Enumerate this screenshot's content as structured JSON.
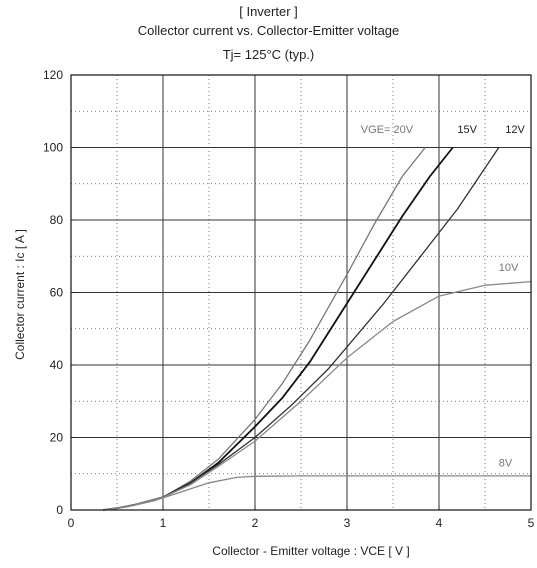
{
  "chart_data": {
    "type": "line",
    "title": "[ Inverter ]",
    "subtitle": "Collector current  vs.  Collector-Emitter voltage",
    "condition": "Tj= 125°C  (typ.)",
    "xlabel": "Collector - Emitter voltage  :  VCE  [ V ]",
    "ylabel": "Collector current  :  Ic [ A ]",
    "xlim": [
      0,
      5
    ],
    "ylim": [
      0,
      120
    ],
    "xticks": [
      "0",
      "1",
      "2",
      "3",
      "4",
      "5"
    ],
    "yticks": [
      "0",
      "20",
      "40",
      "60",
      "80",
      "100",
      "120"
    ],
    "grid": true,
    "series": [
      {
        "name": "VGE= 20V",
        "color": "#777777",
        "x": [
          0.35,
          0.5,
          0.7,
          1.0,
          1.3,
          1.6,
          2.0,
          2.3,
          2.6,
          3.0,
          3.3,
          3.6,
          3.85
        ],
        "y": [
          0,
          0.5,
          1.5,
          3.5,
          8,
          14,
          25,
          35,
          47,
          65,
          79,
          92,
          100
        ]
      },
      {
        "name": "15V",
        "color": "#111111",
        "x": [
          0.35,
          0.5,
          0.7,
          1.0,
          1.3,
          1.6,
          2.0,
          2.3,
          2.6,
          3.0,
          3.3,
          3.6,
          3.9,
          4.15
        ],
        "y": [
          0,
          0.5,
          1.5,
          3.5,
          7.5,
          13,
          23,
          31,
          41,
          57,
          69,
          81,
          92,
          100
        ]
      },
      {
        "name": "12V",
        "color": "#333333",
        "x": [
          0.35,
          0.5,
          0.7,
          1.0,
          1.3,
          1.6,
          2.0,
          2.4,
          2.8,
          3.0,
          3.4,
          3.8,
          4.2,
          4.65
        ],
        "y": [
          0,
          0.5,
          1.5,
          3.5,
          7.5,
          12.5,
          20,
          29,
          39,
          45,
          57,
          70,
          83,
          100
        ]
      },
      {
        "name": "10V",
        "color": "#888888",
        "x": [
          0.35,
          0.5,
          0.7,
          1.0,
          1.3,
          1.6,
          2.0,
          2.5,
          3.0,
          3.5,
          4.0,
          4.5,
          5.0
        ],
        "y": [
          0,
          0.5,
          1.5,
          3.5,
          7,
          12,
          19,
          30,
          42,
          52,
          59,
          62,
          63
        ]
      },
      {
        "name": "8V",
        "color": "#888888",
        "x": [
          0.35,
          0.6,
          0.9,
          1.2,
          1.5,
          1.8,
          2.0,
          2.5,
          3.0,
          4.0,
          5.0
        ],
        "y": [
          0,
          0.8,
          2.5,
          5,
          7.5,
          9,
          9.3,
          9.4,
          9.4,
          9.4,
          9.4
        ]
      }
    ]
  }
}
